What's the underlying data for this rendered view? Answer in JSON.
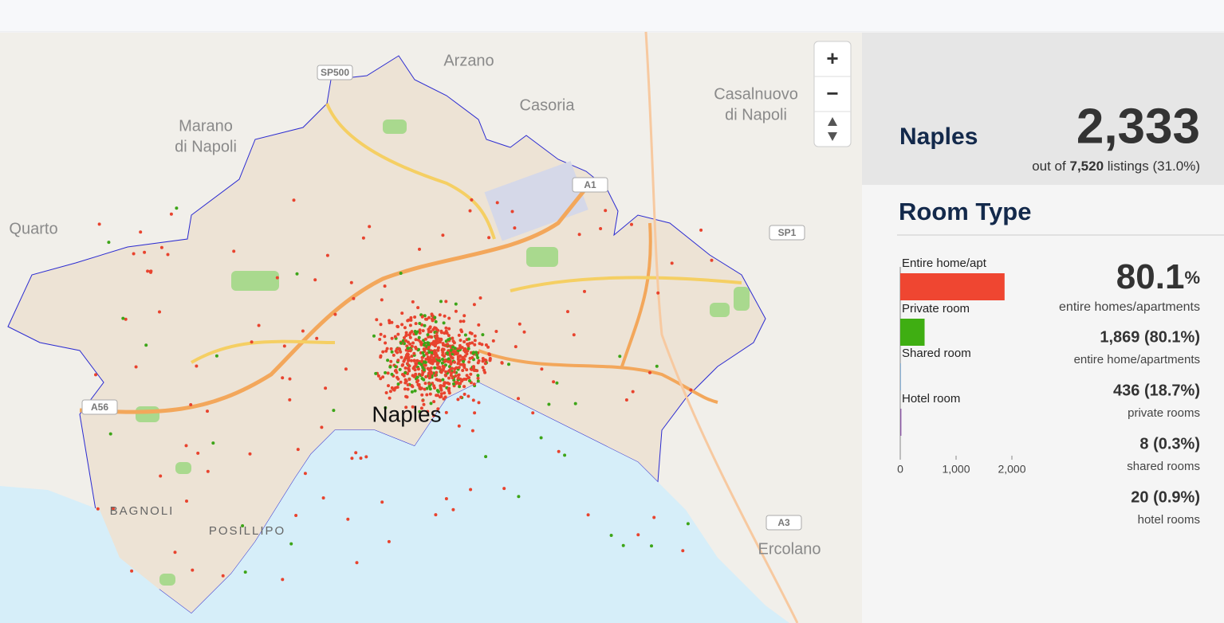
{
  "map": {
    "places": [
      [
        "Arzano"
      ],
      [
        "Casoria"
      ],
      [
        "Casalnuovo",
        "di Napoli"
      ],
      [
        "Marano",
        "di Napoli"
      ],
      [
        "Quarto"
      ],
      [
        "Ercolano"
      ]
    ],
    "roads": [
      "SP500",
      "A1",
      "SP1",
      "A56",
      "A3"
    ],
    "districts": [
      "BAGNOLI",
      "POSILLIPO"
    ],
    "city": "Naples",
    "zoom_in": "+",
    "zoom_out": "−"
  },
  "summary": {
    "neighbourhood": "Naples",
    "count": "2,333",
    "prefix": "out of",
    "total": "7,520",
    "suffix": "listings",
    "share": "(31.0%)"
  },
  "room_type_title": "Room Type",
  "headline": {
    "value": "80.1",
    "unit": "%",
    "label": "entire homes/apartments"
  },
  "breakdown": [
    {
      "text": "1,869 (80.1%)",
      "label": "entire home/apartments"
    },
    {
      "text": "436 (18.7%)",
      "label": "private rooms"
    },
    {
      "text": "8 (0.3%)",
      "label": "shared rooms"
    },
    {
      "text": "20 (0.9%)",
      "label": "hotel rooms"
    }
  ],
  "chart_data": {
    "type": "bar",
    "orientation": "horizontal",
    "categories": [
      "Entire home/apt",
      "Private room",
      "Shared room",
      "Hotel room"
    ],
    "values": [
      1869,
      436,
      8,
      20
    ],
    "colors": [
      "#ef4631",
      "#3fae12",
      "#3b82c4",
      "#8e5aa8"
    ],
    "xlim": [
      0,
      2000
    ],
    "xticks": [
      0,
      {
        "value": 1000,
        "label": "1,000"
      },
      {
        "value": 2000,
        "label": "2,000"
      }
    ]
  }
}
